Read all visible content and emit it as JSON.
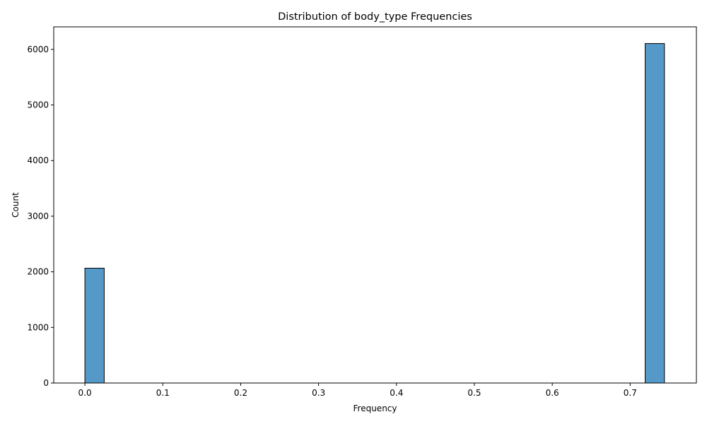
{
  "chart_data": {
    "type": "bar",
    "title": "Distribution of body_type Frequencies",
    "xlabel": "Frequency",
    "ylabel": "Count",
    "xlim": [
      -0.04,
      0.785
    ],
    "ylim": [
      0,
      6405
    ],
    "xticks": [
      0.0,
      0.1,
      0.2,
      0.3,
      0.4,
      0.5,
      0.6,
      0.7
    ],
    "xtick_labels": [
      "0.0",
      "0.1",
      "0.2",
      "0.3",
      "0.4",
      "0.5",
      "0.6",
      "0.7"
    ],
    "yticks": [
      0,
      1000,
      2000,
      3000,
      4000,
      5000,
      6000
    ],
    "ytick_labels": [
      "0",
      "1000",
      "2000",
      "3000",
      "4000",
      "5000",
      "6000"
    ],
    "bins": [
      {
        "x0": 0.0,
        "x1": 0.0248,
        "count": 2065
      },
      {
        "x0": 0.7192,
        "x1": 0.744,
        "count": 6105
      }
    ],
    "bar_color": "#5599c9",
    "edge_color": "#000000",
    "grid": false
  }
}
